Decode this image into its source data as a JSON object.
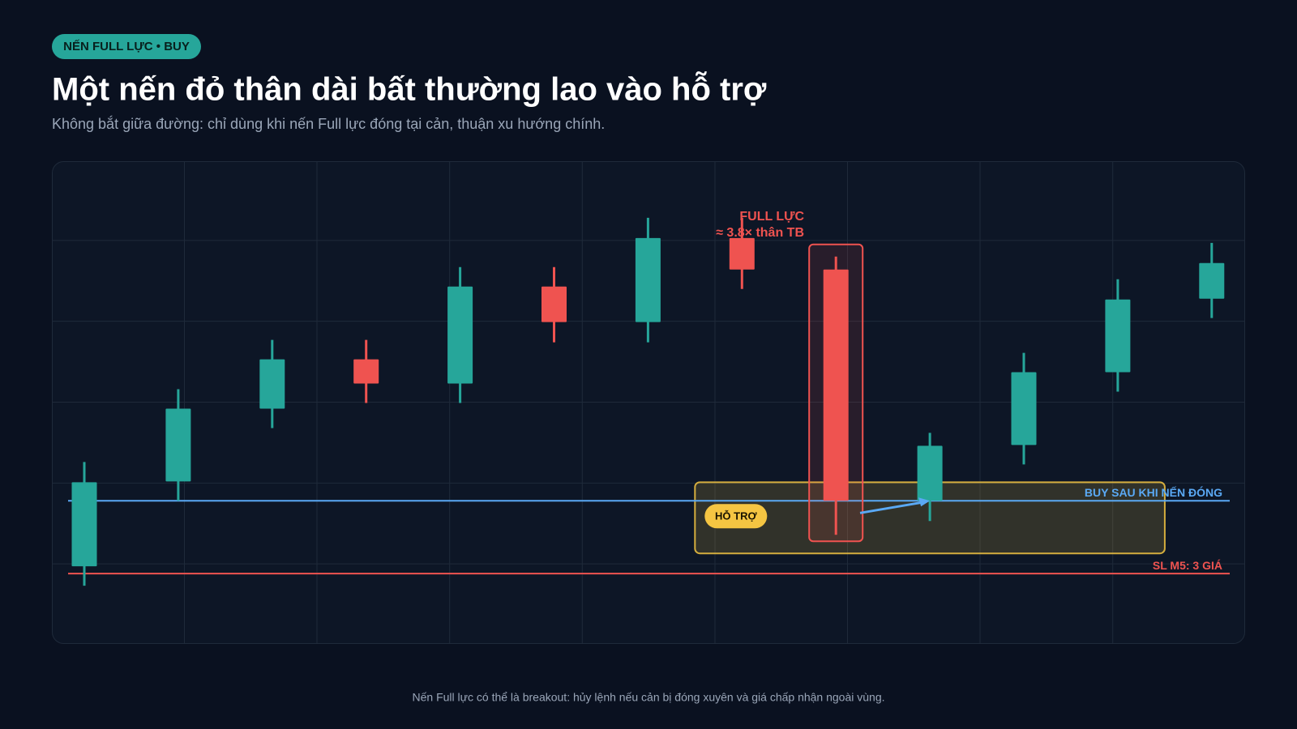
{
  "header": {
    "badge": "NẾN FULL LỰC • BUY",
    "title": "Một nến đỏ thân dài bất thường lao vào hỗ trợ",
    "subtitle": "Không bắt giữa đường: chỉ dùng khi nến Full lực đóng tại cản, thuận xu hướng chính."
  },
  "footer": "Nến Full lực có thể là breakout: hủy lệnh nếu cản bị đóng xuyên và giá chấp nhận ngoài vùng.",
  "chart_data": {
    "type": "candlestick",
    "up_color": "#26a69a",
    "down_color": "#ef5350",
    "open": [
      9.7,
      20.2,
      29.2,
      35.3,
      32.3,
      44.3,
      39.9,
      50.3,
      46.4,
      17.8,
      24.7,
      33.7,
      42.8
    ],
    "high": [
      22.6,
      31.6,
      37.7,
      37.7,
      46.7,
      46.7,
      52.8,
      52.8,
      48.0,
      26.2,
      36.1,
      45.2,
      49.7
    ],
    "low": [
      7.3,
      17.8,
      26.8,
      29.9,
      29.9,
      37.4,
      37.4,
      44.0,
      13.6,
      15.3,
      22.3,
      31.3,
      40.4
    ],
    "close": [
      20.1,
      29.2,
      35.3,
      32.3,
      44.3,
      39.9,
      50.3,
      46.4,
      17.8,
      24.6,
      33.7,
      42.7,
      47.2
    ],
    "ylim": [
      0,
      60
    ],
    "yticks": [
      10,
      20,
      30,
      40,
      50
    ],
    "grid": true,
    "support_zone": {
      "label": "HỖ TRỢ",
      "low": 11.3,
      "high": 20.1,
      "color": "#f5c542"
    },
    "lines": [
      {
        "name": "BUY SAU KHI NẾN ĐÓNG",
        "value": 17.8,
        "color": "#5aa9f5"
      },
      {
        "name": "SL M5: 3 GIÁ",
        "value": 8.8,
        "color": "#ef5350"
      }
    ],
    "annotation": [
      "FULL LỰC",
      "≈ 3.8× thân TB"
    ]
  }
}
